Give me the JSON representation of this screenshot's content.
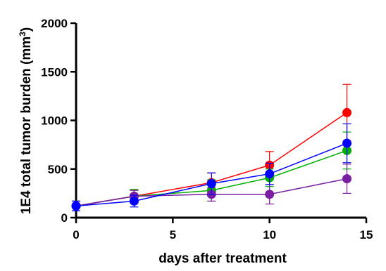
{
  "chart_data": {
    "type": "line",
    "title": "",
    "xlabel": "days after treatment",
    "ylabel": "1E4 total tumor burden (mm",
    "ylabel_superscript": "3",
    "ylabel_close": ")",
    "xlim": [
      0,
      15
    ],
    "ylim": [
      0,
      2000
    ],
    "xticks": [
      "0",
      "5",
      "10",
      "15"
    ],
    "yticks": [
      "0",
      "500",
      "1000",
      "1500",
      "2000"
    ],
    "xtick_values": [
      0,
      5,
      10,
      15
    ],
    "ytick_values": [
      0,
      500,
      1000,
      1500,
      2000
    ],
    "grid": false,
    "x": [
      0,
      3,
      7,
      10,
      14
    ],
    "series": [
      {
        "color": "#ff0000",
        "values": [
          120,
          220,
          360,
          540,
          1080
        ],
        "errors": [
          50,
          70,
          100,
          140,
          290
        ]
      },
      {
        "color": "#00b000",
        "values": [
          120,
          220,
          280,
          410,
          690
        ],
        "errors": [
          50,
          70,
          110,
          90,
          190
        ]
      },
      {
        "color": "#7a1fa2",
        "values": [
          120,
          220,
          240,
          240,
          400
        ],
        "errors": [
          50,
          60,
          70,
          100,
          150
        ]
      },
      {
        "color": "#0000ff",
        "values": [
          120,
          170,
          350,
          450,
          765
        ],
        "errors": [
          50,
          60,
          110,
          110,
          200
        ]
      }
    ]
  }
}
